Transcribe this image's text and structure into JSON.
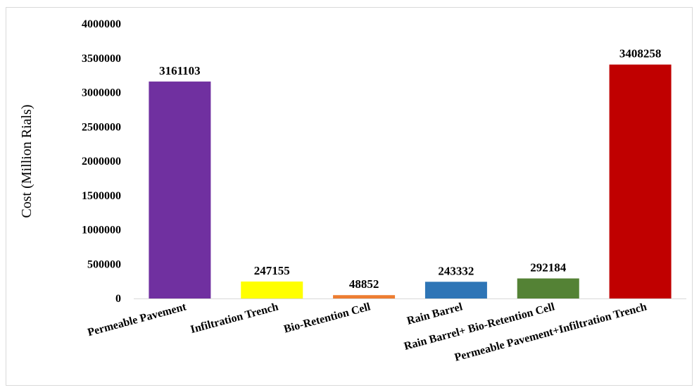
{
  "chart_data": {
    "type": "bar",
    "title": "",
    "xlabel": "",
    "ylabel": "Cost (Million Rials)",
    "ylim": [
      0,
      4000000
    ],
    "yticks": [
      0,
      500000,
      1000000,
      1500000,
      2000000,
      2500000,
      3000000,
      3500000,
      4000000
    ],
    "grid": false,
    "legend": "none",
    "categories": [
      "Permeable Pavement",
      "Infiltration Trench",
      "Bio-Retention Cell",
      "Rain Barrel",
      "Rain Barrel+ Bio-Retention Cell",
      "Permeable Pavement+Infiltration Trench"
    ],
    "values": [
      3161103,
      247155,
      48852,
      243332,
      292184,
      3408258
    ],
    "data_labels": [
      "3161103",
      "247155",
      "48852",
      "243332",
      "292184",
      "3408258"
    ],
    "colors": [
      "#7030a0",
      "#ffff00",
      "#ed7d31",
      "#2e75b6",
      "#548235",
      "#c00000"
    ]
  }
}
